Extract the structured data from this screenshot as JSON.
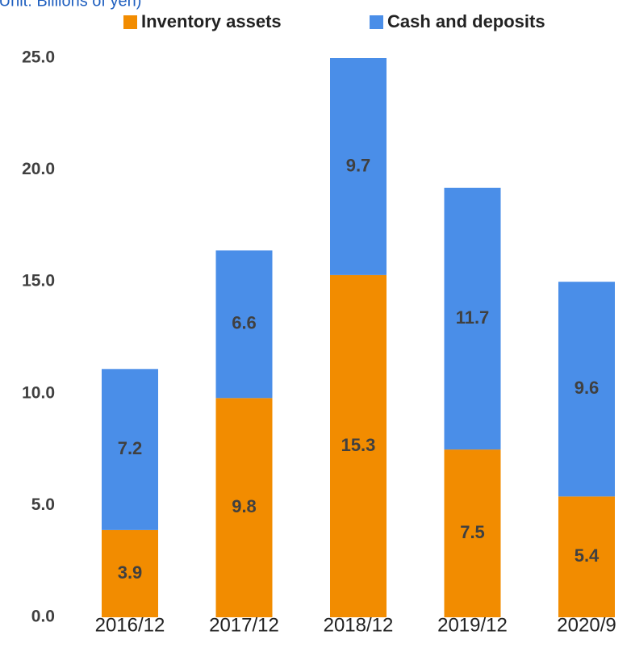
{
  "chart_data": {
    "type": "stacked_bar",
    "subtitle": "(Unit: Billions of yen)",
    "categories": [
      "2016/12",
      "2017/12",
      "2018/12",
      "2019/12",
      "2020/9"
    ],
    "series": [
      {
        "name": "Inventory assets",
        "color": "#f28c00",
        "values": [
          3.9,
          9.8,
          15.3,
          7.5,
          5.4
        ]
      },
      {
        "name": "Cash and deposits",
        "color": "#4a8ee8",
        "values": [
          7.2,
          6.6,
          9.7,
          11.7,
          9.6
        ]
      }
    ],
    "ylim": [
      0,
      25
    ],
    "yticks": [
      {
        "value": 0,
        "label": "0.0"
      },
      {
        "value": 5,
        "label": "5.0"
      },
      {
        "value": 10,
        "label": "10.0"
      },
      {
        "value": 15,
        "label": "15.0"
      },
      {
        "value": 20,
        "label": "20.0"
      },
      {
        "value": 25,
        "label": "25.0"
      }
    ],
    "grid": false
  }
}
